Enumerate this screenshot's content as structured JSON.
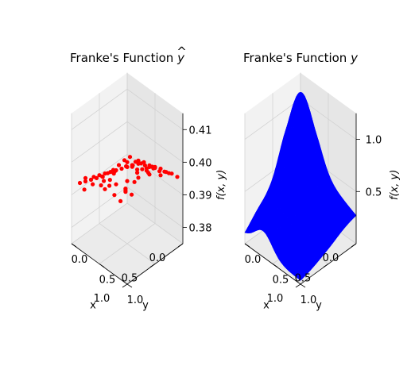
{
  "chart_data": [
    {
      "type": "scatter",
      "projection": "3d",
      "title": "Franke's Function ŷ",
      "title_prefix": "Franke's Function ",
      "title_symbol": "y",
      "xlabel": "x",
      "ylabel": "y",
      "zlabel": "f(x, y)",
      "xlim": [
        0.0,
        1.0
      ],
      "ylim": [
        0.0,
        1.0
      ],
      "zlim": [
        0.375,
        0.415
      ],
      "xticks": [
        "0.0",
        "0.5",
        "1.0"
      ],
      "yticks": [
        "0.0",
        "0.5",
        "1.0"
      ],
      "zticks": [
        "0.38",
        "0.39",
        "0.40",
        "0.41"
      ],
      "marker_color": "#ff0000",
      "grid": true,
      "points": [
        {
          "x": 0.1,
          "y": 0.9,
          "z": 0.3965
        },
        {
          "x": 0.15,
          "y": 0.85,
          "z": 0.397
        },
        {
          "x": 0.2,
          "y": 0.8,
          "z": 0.396
        },
        {
          "x": 0.05,
          "y": 0.95,
          "z": 0.3955
        },
        {
          "x": 0.25,
          "y": 0.7,
          "z": 0.398
        },
        {
          "x": 0.3,
          "y": 0.65,
          "z": 0.3975
        },
        {
          "x": 0.35,
          "y": 0.6,
          "z": 0.399
        },
        {
          "x": 0.4,
          "y": 0.55,
          "z": 0.3995
        },
        {
          "x": 0.45,
          "y": 0.5,
          "z": 0.401
        },
        {
          "x": 0.5,
          "y": 0.45,
          "z": 0.4
        },
        {
          "x": 0.55,
          "y": 0.4,
          "z": 0.3985
        },
        {
          "x": 0.6,
          "y": 0.35,
          "z": 0.397
        },
        {
          "x": 0.65,
          "y": 0.3,
          "z": 0.396
        },
        {
          "x": 0.7,
          "y": 0.25,
          "z": 0.395
        },
        {
          "x": 0.75,
          "y": 0.2,
          "z": 0.3945
        },
        {
          "x": 0.8,
          "y": 0.15,
          "z": 0.394
        },
        {
          "x": 0.85,
          "y": 0.1,
          "z": 0.3935
        },
        {
          "x": 0.9,
          "y": 0.05,
          "z": 0.393
        },
        {
          "x": 0.12,
          "y": 0.7,
          "z": 0.395
        },
        {
          "x": 0.22,
          "y": 0.6,
          "z": 0.3945
        },
        {
          "x": 0.32,
          "y": 0.5,
          "z": 0.3955
        },
        {
          "x": 0.42,
          "y": 0.4,
          "z": 0.3965
        },
        {
          "x": 0.52,
          "y": 0.3,
          "z": 0.395
        },
        {
          "x": 0.62,
          "y": 0.2,
          "z": 0.392
        },
        {
          "x": 0.72,
          "y": 0.1,
          "z": 0.391
        },
        {
          "x": 0.82,
          "y": 0.05,
          "z": 0.39
        },
        {
          "x": 0.3,
          "y": 0.9,
          "z": 0.4005
        },
        {
          "x": 0.4,
          "y": 0.8,
          "z": 0.4015
        },
        {
          "x": 0.5,
          "y": 0.7,
          "z": 0.402
        },
        {
          "x": 0.6,
          "y": 0.6,
          "z": 0.401
        },
        {
          "x": 0.7,
          "y": 0.5,
          "z": 0.4
        },
        {
          "x": 0.8,
          "y": 0.4,
          "z": 0.399
        },
        {
          "x": 0.9,
          "y": 0.3,
          "z": 0.398
        },
        {
          "x": 0.95,
          "y": 0.2,
          "z": 0.397
        },
        {
          "x": 0.2,
          "y": 0.95,
          "z": 0.3985
        },
        {
          "x": 0.35,
          "y": 0.85,
          "z": 0.401
        },
        {
          "x": 0.45,
          "y": 0.75,
          "z": 0.4025
        },
        {
          "x": 0.55,
          "y": 0.65,
          "z": 0.4015
        },
        {
          "x": 0.65,
          "y": 0.55,
          "z": 0.4005
        },
        {
          "x": 0.75,
          "y": 0.45,
          "z": 0.3995
        },
        {
          "x": 0.85,
          "y": 0.35,
          "z": 0.3985
        },
        {
          "x": 0.92,
          "y": 0.45,
          "z": 0.3975
        },
        {
          "x": 0.15,
          "y": 0.55,
          "z": 0.3925
        },
        {
          "x": 0.25,
          "y": 0.45,
          "z": 0.3915
        },
        {
          "x": 0.35,
          "y": 0.35,
          "z": 0.3905
        },
        {
          "x": 0.45,
          "y": 0.25,
          "z": 0.3895
        },
        {
          "x": 0.55,
          "y": 0.15,
          "z": 0.388
        },
        {
          "x": 0.58,
          "y": 0.55,
          "z": 0.393
        },
        {
          "x": 0.68,
          "y": 0.65,
          "z": 0.396
        },
        {
          "x": 0.78,
          "y": 0.75,
          "z": 0.3975
        },
        {
          "x": 0.88,
          "y": 0.65,
          "z": 0.3965
        },
        {
          "x": 0.48,
          "y": 0.88,
          "z": 0.403
        },
        {
          "x": 0.38,
          "y": 0.7,
          "z": 0.4
        },
        {
          "x": 0.28,
          "y": 0.78,
          "z": 0.399
        },
        {
          "x": 0.18,
          "y": 0.65,
          "z": 0.396
        },
        {
          "x": 0.08,
          "y": 0.75,
          "z": 0.395
        },
        {
          "x": 0.62,
          "y": 0.8,
          "z": 0.402
        },
        {
          "x": 0.72,
          "y": 0.85,
          "z": 0.401
        },
        {
          "x": 0.82,
          "y": 0.9,
          "z": 0.399
        },
        {
          "x": 0.92,
          "y": 0.8,
          "z": 0.397
        },
        {
          "x": 0.66,
          "y": 0.42,
          "z": 0.3975
        },
        {
          "x": 0.76,
          "y": 0.32,
          "z": 0.3965
        },
        {
          "x": 0.52,
          "y": 0.52,
          "z": 0.4005
        },
        {
          "x": 0.42,
          "y": 0.62,
          "z": 0.401
        },
        {
          "x": 0.33,
          "y": 0.42,
          "z": 0.396
        },
        {
          "x": 0.23,
          "y": 0.32,
          "z": 0.393
        },
        {
          "x": 0.43,
          "y": 0.12,
          "z": 0.389
        },
        {
          "x": 0.13,
          "y": 0.4,
          "z": 0.392
        },
        {
          "x": 0.57,
          "y": 0.92,
          "z": 0.4035
        },
        {
          "x": 0.87,
          "y": 0.55,
          "z": 0.398
        }
      ]
    },
    {
      "type": "surface",
      "projection": "3d",
      "title": "Franke's Function y",
      "title_prefix": "Franke's Function ",
      "title_symbol": "y",
      "xlabel": "x",
      "ylabel": "y",
      "zlabel": "f(x, y)",
      "xlim": [
        0.0,
        1.0
      ],
      "ylim": [
        0.0,
        1.0
      ],
      "zlim": [
        0.0,
        1.25
      ],
      "xticks": [
        "0.0",
        "0.5",
        "1.0"
      ],
      "yticks": [
        "0.0",
        "0.5",
        "1.0"
      ],
      "zticks": [
        "0.5",
        "1.0"
      ],
      "surface_color": "#0000ff",
      "grid": true,
      "function": "Franke"
    }
  ]
}
